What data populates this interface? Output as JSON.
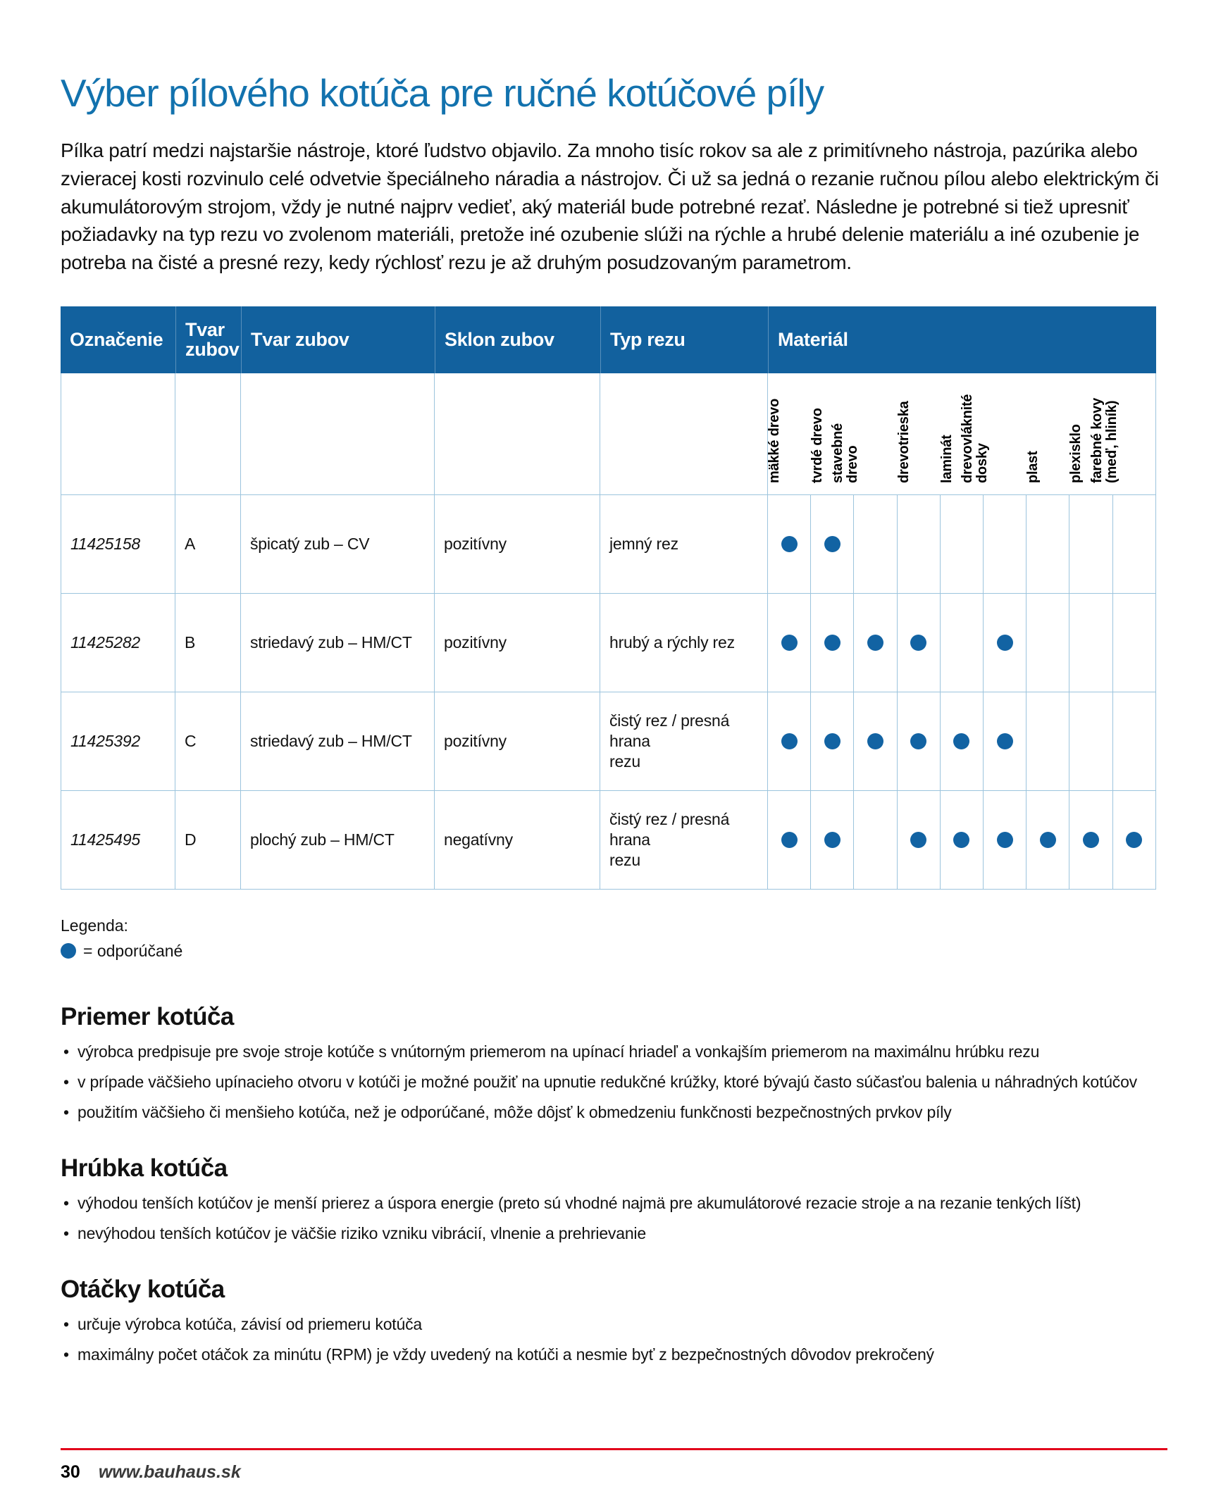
{
  "page": {
    "title": "Výber pílového kotúča pre ručné kotúčové píly",
    "intro": "Pílka patrí medzi najstaršie nástroje, ktoré ľudstvo objavilo. Za mnoho tisíc rokov sa ale z primitívneho nástroja, pazúrika alebo zvieracej kosti rozvinulo celé odvetvie špeciálneho náradia a nástrojov. Či už sa jedná o rezanie ručnou pílou alebo elektrickým či akumulátorovým strojom, vždy je nutné najprv vedieť, aký materiál bude potrebné rezať. Následne je potrebné si tiež upresniť požiadavky na typ rezu vo zvolenom materiáli, pretože iné ozubenie slúži na rýchle a hrubé delenie materiálu a iné ozubenie je potreba na čisté a presné rezy, kedy rýchlosť rezu je až druhým posudzovaným parametrom."
  },
  "table": {
    "headers": {
      "oznacenie": "Označenie",
      "tvar_zubov_short": "Tvar zubov",
      "tvar_zubov": "Tvar zubov",
      "sklon_zubov": "Sklon zubov",
      "typ_rezu": "Typ rezu",
      "material": "Materiál"
    },
    "material_columns": [
      "mäkké drevo",
      "tvrdé drevo",
      "stavebné\ndrevo",
      "drevotrieska",
      "laminát",
      "drevovláknité\ndosky",
      "plast",
      "plexisklo",
      "farebné kovy\n(meď, hliník)"
    ],
    "rows": [
      {
        "code": "11425158",
        "letter": "A",
        "shape": "špicatý zub – CV",
        "pitch": "pozitívny",
        "cut": "jemný rez",
        "materials": [
          1,
          1,
          0,
          0,
          0,
          0,
          0,
          0,
          0
        ]
      },
      {
        "code": "11425282",
        "letter": "B",
        "shape": "striedavý zub – HM/CT",
        "pitch": "pozitívny",
        "cut": "hrubý a rýchly rez",
        "materials": [
          1,
          1,
          1,
          1,
          0,
          1,
          0,
          0,
          0
        ]
      },
      {
        "code": "11425392",
        "letter": "C",
        "shape": "striedavý zub – HM/CT",
        "pitch": "pozitívny",
        "cut": "čistý rez / presná hrana\nrezu",
        "materials": [
          1,
          1,
          1,
          1,
          1,
          1,
          0,
          0,
          0
        ]
      },
      {
        "code": "11425495",
        "letter": "D",
        "shape": "plochý zub – HM/CT",
        "pitch": "negatívny",
        "cut": "čistý rez / presná hrana\nrezu",
        "materials": [
          1,
          1,
          0,
          1,
          1,
          1,
          1,
          1,
          1
        ]
      }
    ]
  },
  "legend": {
    "label": "Legenda:",
    "dot_meaning": "= odporúčané"
  },
  "sections": [
    {
      "heading": "Priemer kotúča",
      "bullets": [
        "výrobca predpisuje pre svoje stroje kotúče s vnútorným priemerom na upínací hriadeľ a vonkajším priemerom na maximálnu hrúbku rezu",
        "v prípade väčšieho upínacieho otvoru v kotúči je možné použiť na upnutie redukčné krúžky, ktoré bývajú často súčasťou balenia u náhradných kotúčov",
        "použitím väčšieho či menšieho kotúča, než je odporúčané, môže dôjsť k obmedzeniu funkčnosti bezpečnostných prvkov píly"
      ]
    },
    {
      "heading": "Hrúbka kotúča",
      "bullets": [
        "výhodou tenších kotúčov je menší prierez a úspora energie (preto sú vhodné najmä pre akumulátorové rezacie stroje a na rezanie tenkých líšt)",
        "nevýhodou tenších kotúčov je väčšie riziko vzniku vibrácií, vlnenie a prehrievanie"
      ]
    },
    {
      "heading": "Otáčky kotúča",
      "bullets": [
        "určuje výrobca kotúča, závisí od priemeru kotúča",
        "maximálny počet otáčok za minútu (RPM) je vždy uvedený na kotúči a nesmie byť z bezpečnostných dôvodov prekročený"
      ]
    }
  ],
  "footer": {
    "page_number": "30",
    "website": "www.bauhaus.sk"
  },
  "colors": {
    "accent_blue": "#12619e",
    "dot_blue": "#1263a3",
    "title_blue": "#1272ae",
    "border_blue": "#9cc4dd",
    "footer_red": "#e2001a"
  }
}
